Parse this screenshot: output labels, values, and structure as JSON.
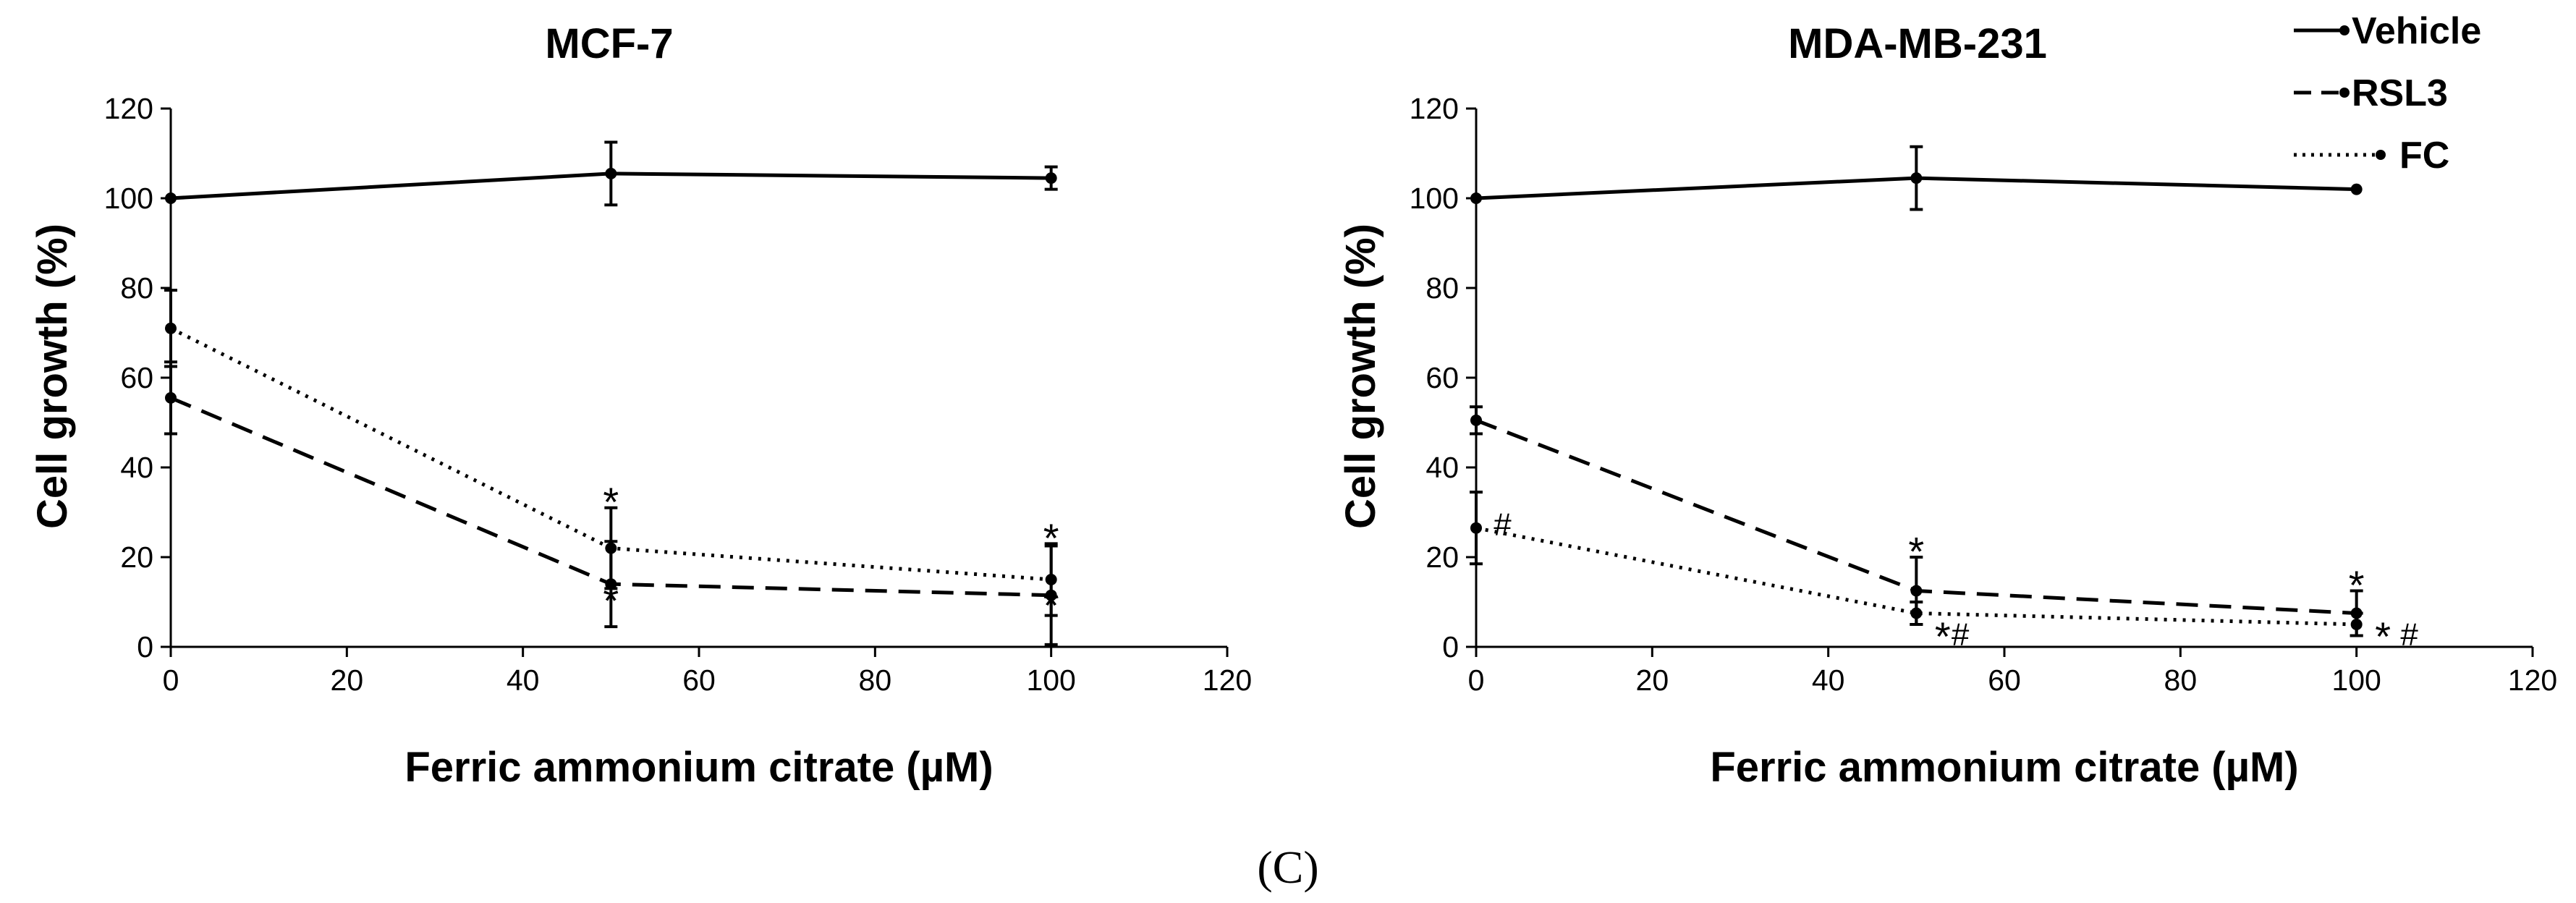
{
  "panel_label": "(C)",
  "chart_data": [
    {
      "type": "line",
      "title": "MCF-7",
      "xlabel": "Ferric ammonium citrate (µM)",
      "ylabel": "Cell growth (%)",
      "xlim": [
        0,
        120
      ],
      "ylim": [
        0,
        120
      ],
      "xticks": [
        "0",
        "20",
        "40",
        "60",
        "80",
        "100",
        "120"
      ],
      "yticks": [
        "0",
        "20",
        "40",
        "60",
        "80",
        "100",
        "120"
      ],
      "grid": false,
      "x": [
        0,
        50,
        100
      ],
      "series": [
        {
          "name": "Vehicle",
          "style": "solid",
          "values": [
            100,
            105.5,
            104.5
          ],
          "errors": [
            0,
            7,
            2.5
          ]
        },
        {
          "name": "RSL3",
          "style": "dashed",
          "values": [
            55.5,
            14,
            11.5
          ],
          "errors": [
            8,
            9.5,
            11
          ]
        },
        {
          "name": "FC",
          "style": "dotted",
          "values": [
            71,
            22,
            15
          ],
          "errors": [
            8.5,
            9,
            8
          ]
        }
      ],
      "annotations": [
        {
          "text": "*",
          "x": 50,
          "y": 34
        },
        {
          "text": "*",
          "x": 50,
          "y": 12
        },
        {
          "text": "*",
          "x": 100,
          "y": 26
        },
        {
          "text": "*",
          "x": 100,
          "y": 11
        }
      ]
    },
    {
      "type": "line",
      "title": "MDA-MB-231",
      "xlabel": "Ferric ammonium citrate (µM)",
      "ylabel": "Cell growth (%)",
      "xlim": [
        0,
        120
      ],
      "ylim": [
        0,
        120
      ],
      "xticks": [
        "0",
        "20",
        "40",
        "60",
        "80",
        "100",
        "120"
      ],
      "yticks": [
        "0",
        "20",
        "40",
        "60",
        "80",
        "100",
        "120"
      ],
      "grid": false,
      "x": [
        0,
        50,
        100
      ],
      "series": [
        {
          "name": "Vehicle",
          "style": "solid",
          "values": [
            100,
            104.5,
            102
          ],
          "errors": [
            0,
            7,
            0
          ]
        },
        {
          "name": "RSL3",
          "style": "dashed",
          "values": [
            50.5,
            12.5,
            7.5
          ],
          "errors": [
            3,
            7.5,
            5
          ]
        },
        {
          "name": "FC",
          "style": "dotted",
          "values": [
            26.5,
            7.5,
            5
          ],
          "errors": [
            8,
            2.5,
            2.5
          ]
        }
      ],
      "annotations": [
        {
          "text": "*",
          "x": 50,
          "y": 23
        },
        {
          "text": "*",
          "x": 100,
          "y": 15.5
        },
        {
          "text": "*",
          "x": 53,
          "y": 4
        },
        {
          "text": "*",
          "x": 103,
          "y": 4
        },
        {
          "text": "#",
          "x": 3,
          "y": 27.5
        },
        {
          "text": "#",
          "x": 55,
          "y": 3
        },
        {
          "text": "#",
          "x": 106,
          "y": 3
        }
      ],
      "legend": {
        "placement": "top-right",
        "entries": [
          "Vehicle",
          "RSL3",
          "FC"
        ]
      }
    }
  ]
}
